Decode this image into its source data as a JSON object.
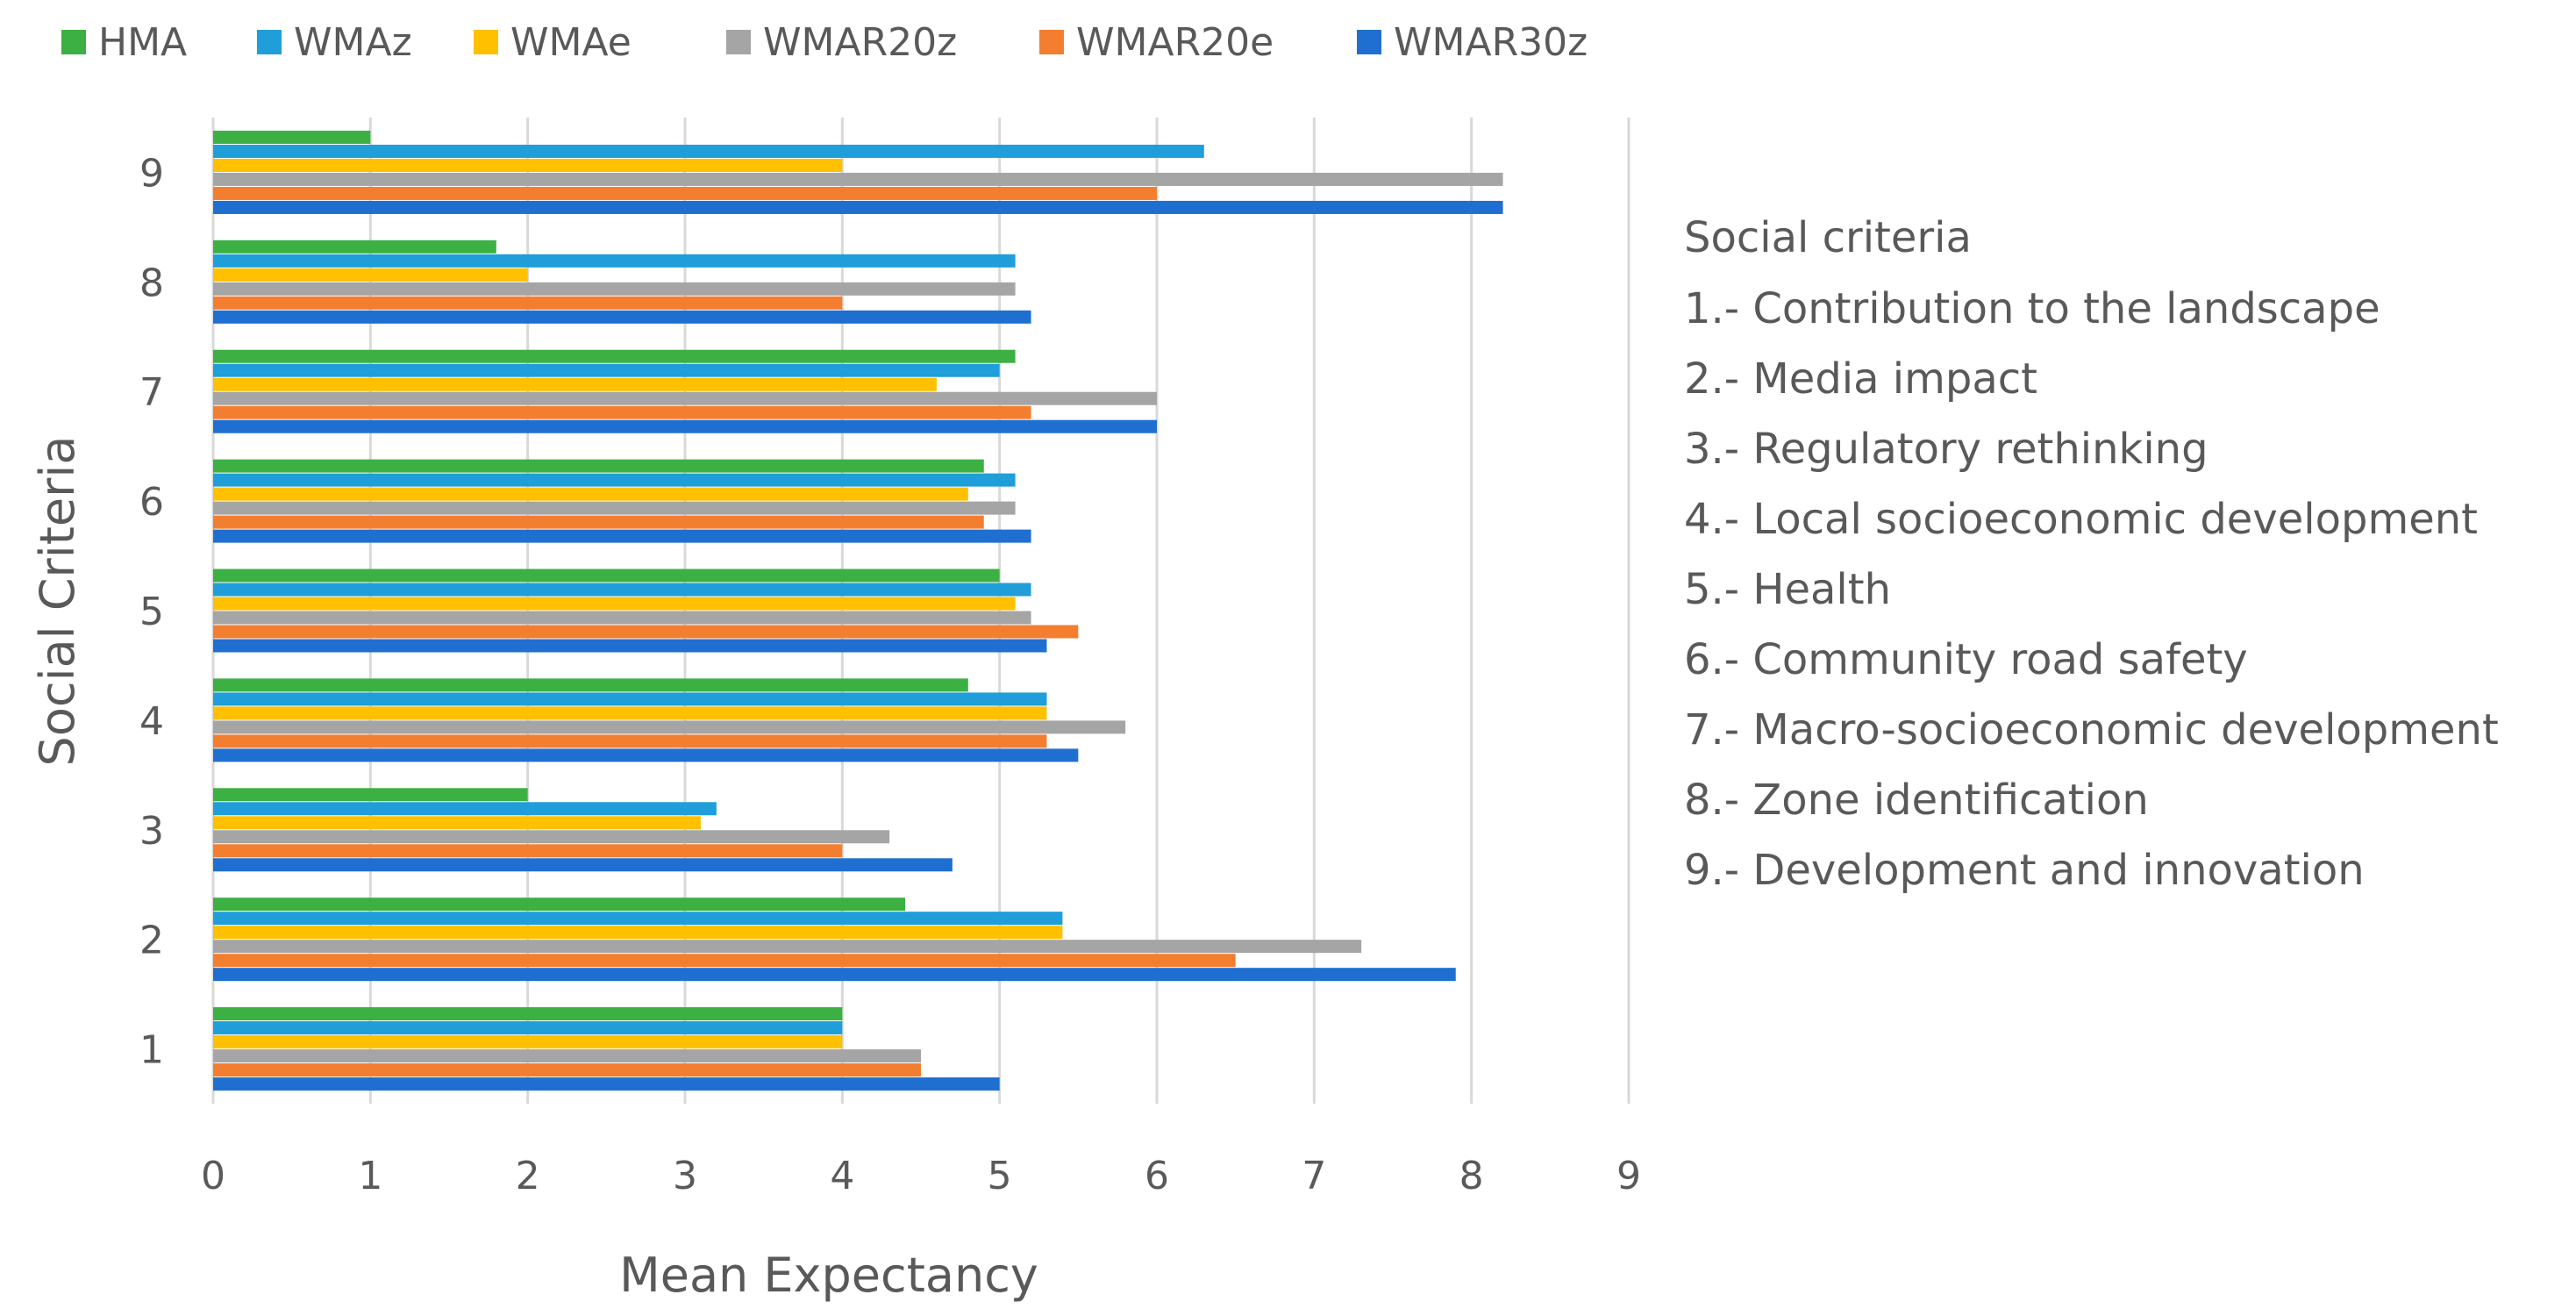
{
  "chart_data": {
    "type": "bar",
    "orientation": "horizontal",
    "title": "",
    "xlabel": "Mean Expectancy",
    "ylabel": "Social Criteria",
    "xlim": [
      0,
      9
    ],
    "x_ticks": [
      0,
      1,
      2,
      3,
      4,
      5,
      6,
      7,
      8,
      9
    ],
    "grid": "vertical",
    "legend_position": "top",
    "categories": [
      "1",
      "2",
      "3",
      "4",
      "5",
      "6",
      "7",
      "8",
      "9"
    ],
    "series": [
      {
        "name": "HMA",
        "color": "#3CB043",
        "values": [
          4.0,
          4.4,
          2.0,
          4.8,
          5.0,
          4.9,
          5.1,
          1.8,
          1.0
        ]
      },
      {
        "name": "WMAz",
        "color": "#1F9ED9",
        "values": [
          4.0,
          5.4,
          3.2,
          5.3,
          5.2,
          5.1,
          5.0,
          5.1,
          6.3
        ]
      },
      {
        "name": "WMAe",
        "color": "#FFC000",
        "values": [
          4.0,
          5.4,
          3.1,
          5.3,
          5.1,
          4.8,
          4.6,
          2.0,
          4.0
        ]
      },
      {
        "name": "WMAR20z",
        "color": "#A5A5A5",
        "values": [
          4.5,
          7.3,
          4.3,
          5.8,
          5.2,
          5.1,
          6.0,
          5.1,
          8.2
        ]
      },
      {
        "name": "WMAR20e",
        "color": "#F47E30",
        "values": [
          4.5,
          6.5,
          4.0,
          5.3,
          5.5,
          4.9,
          5.2,
          4.0,
          6.0
        ]
      },
      {
        "name": "WMAR30z",
        "color": "#1F6FD1",
        "values": [
          5.0,
          7.9,
          4.7,
          5.5,
          5.3,
          5.2,
          6.0,
          5.2,
          8.2
        ]
      }
    ]
  },
  "side_legend": {
    "title": "Social criteria",
    "items": [
      "1.- Contribution to the landscape",
      "2.- Media impact",
      "3.- Regulatory rethinking",
      "4.- Local socioeconomic development",
      "5.- Health",
      "6.- Community road safety",
      "7.- Macro-socioeconomic development",
      "8.- Zone identification",
      "9.- Development and innovation"
    ]
  }
}
